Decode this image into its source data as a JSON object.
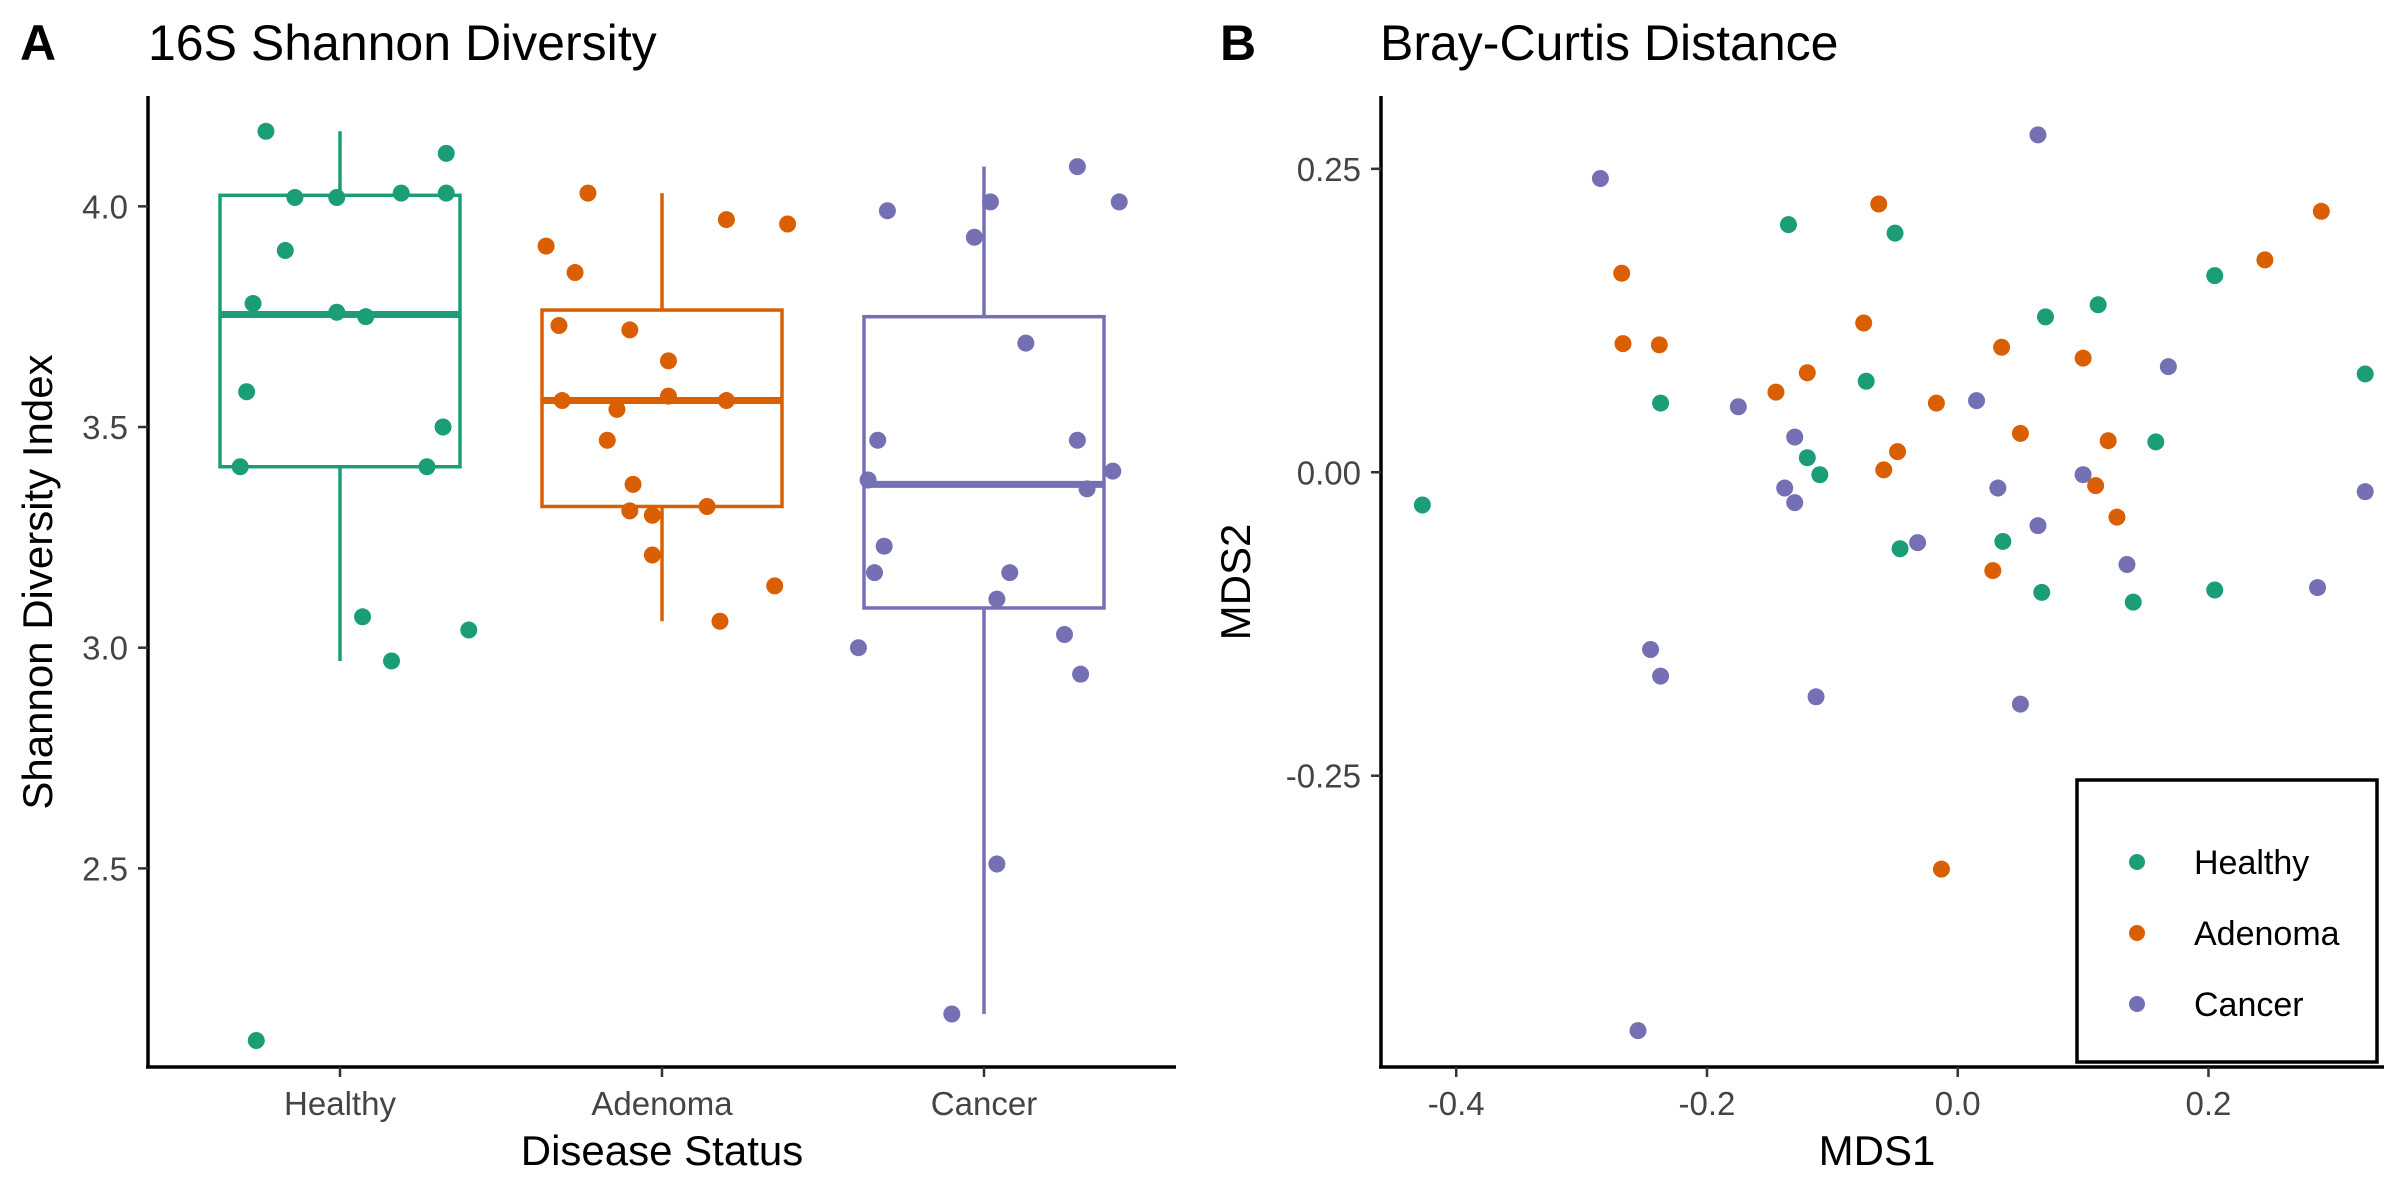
{
  "colors": {
    "Healthy": "#1b9e77",
    "Adenoma": "#d95f02",
    "Cancer": "#7570b3"
  },
  "chart_data": [
    {
      "panel": "A",
      "type": "box",
      "title": "16S Shannon Diversity",
      "xlabel": "Disease Status",
      "ylabel": "Shannon Diversity Index",
      "categories": [
        "Healthy",
        "Adenoma",
        "Cancer"
      ],
      "ylim": [
        2.05,
        4.25
      ],
      "yticks": [
        2.5,
        3.0,
        3.5,
        4.0
      ],
      "ytick_labels": [
        "2.5",
        "3.0",
        "3.5",
        "4.0"
      ],
      "boxes": [
        {
          "name": "Healthy",
          "whisker_low": 2.97,
          "q1": 3.41,
          "median": 3.755,
          "q3": 4.025,
          "whisker_high": 4.17
        },
        {
          "name": "Adenoma",
          "whisker_low": 3.06,
          "q1": 3.32,
          "median": 3.56,
          "q3": 3.765,
          "whisker_high": 4.03
        },
        {
          "name": "Cancer",
          "whisker_low": 2.17,
          "q1": 3.09,
          "median": 3.37,
          "q3": 3.75,
          "whisker_high": 4.09
        }
      ],
      "points": [
        {
          "group": "Healthy",
          "x": 0.69,
          "y": 3.41
        },
        {
          "group": "Healthy",
          "x": 0.71,
          "y": 3.58
        },
        {
          "group": "Healthy",
          "x": 0.73,
          "y": 3.78
        },
        {
          "group": "Healthy",
          "x": 0.74,
          "y": 2.11
        },
        {
          "group": "Healthy",
          "x": 0.77,
          "y": 4.17
        },
        {
          "group": "Healthy",
          "x": 0.83,
          "y": 3.9
        },
        {
          "group": "Healthy",
          "x": 0.86,
          "y": 4.02
        },
        {
          "group": "Healthy",
          "x": 0.99,
          "y": 4.02
        },
        {
          "group": "Healthy",
          "x": 0.99,
          "y": 3.76
        },
        {
          "group": "Healthy",
          "x": 1.07,
          "y": 3.07
        },
        {
          "group": "Healthy",
          "x": 1.08,
          "y": 3.75
        },
        {
          "group": "Healthy",
          "x": 1.16,
          "y": 2.97
        },
        {
          "group": "Healthy",
          "x": 1.19,
          "y": 4.03
        },
        {
          "group": "Healthy",
          "x": 1.27,
          "y": 3.41
        },
        {
          "group": "Healthy",
          "x": 1.33,
          "y": 4.12
        },
        {
          "group": "Healthy",
          "x": 1.33,
          "y": 4.03
        },
        {
          "group": "Healthy",
          "x": 1.32,
          "y": 3.5
        },
        {
          "group": "Healthy",
          "x": 1.4,
          "y": 3.04
        },
        {
          "group": "Adenoma",
          "x": 1.64,
          "y": 3.91
        },
        {
          "group": "Adenoma",
          "x": 1.68,
          "y": 3.73
        },
        {
          "group": "Adenoma",
          "x": 1.69,
          "y": 3.56
        },
        {
          "group": "Adenoma",
          "x": 1.73,
          "y": 3.85
        },
        {
          "group": "Adenoma",
          "x": 1.77,
          "y": 4.03
        },
        {
          "group": "Adenoma",
          "x": 1.83,
          "y": 3.47
        },
        {
          "group": "Adenoma",
          "x": 1.86,
          "y": 3.54
        },
        {
          "group": "Adenoma",
          "x": 1.9,
          "y": 3.72
        },
        {
          "group": "Adenoma",
          "x": 1.9,
          "y": 3.31
        },
        {
          "group": "Adenoma",
          "x": 1.91,
          "y": 3.37
        },
        {
          "group": "Adenoma",
          "x": 1.97,
          "y": 3.21
        },
        {
          "group": "Adenoma",
          "x": 1.97,
          "y": 3.3
        },
        {
          "group": "Adenoma",
          "x": 2.02,
          "y": 3.65
        },
        {
          "group": "Adenoma",
          "x": 2.02,
          "y": 3.57
        },
        {
          "group": "Adenoma",
          "x": 2.14,
          "y": 3.32
        },
        {
          "group": "Adenoma",
          "x": 2.18,
          "y": 3.06
        },
        {
          "group": "Adenoma",
          "x": 2.2,
          "y": 3.97
        },
        {
          "group": "Adenoma",
          "x": 2.2,
          "y": 3.56
        },
        {
          "group": "Adenoma",
          "x": 2.35,
          "y": 3.14
        },
        {
          "group": "Adenoma",
          "x": 2.39,
          "y": 3.96
        },
        {
          "group": "Cancer",
          "x": 2.61,
          "y": 3.0
        },
        {
          "group": "Cancer",
          "x": 2.64,
          "y": 3.38
        },
        {
          "group": "Cancer",
          "x": 2.66,
          "y": 3.17
        },
        {
          "group": "Cancer",
          "x": 2.67,
          "y": 3.47
        },
        {
          "group": "Cancer",
          "x": 2.69,
          "y": 3.23
        },
        {
          "group": "Cancer",
          "x": 2.7,
          "y": 3.99
        },
        {
          "group": "Cancer",
          "x": 2.9,
          "y": 2.17
        },
        {
          "group": "Cancer",
          "x": 2.97,
          "y": 3.93
        },
        {
          "group": "Cancer",
          "x": 3.02,
          "y": 4.01
        },
        {
          "group": "Cancer",
          "x": 3.04,
          "y": 3.11
        },
        {
          "group": "Cancer",
          "x": 3.04,
          "y": 2.51
        },
        {
          "group": "Cancer",
          "x": 3.08,
          "y": 3.17
        },
        {
          "group": "Cancer",
          "x": 3.13,
          "y": 3.69
        },
        {
          "group": "Cancer",
          "x": 3.25,
          "y": 3.03
        },
        {
          "group": "Cancer",
          "x": 3.29,
          "y": 4.09
        },
        {
          "group": "Cancer",
          "x": 3.29,
          "y": 3.47
        },
        {
          "group": "Cancer",
          "x": 3.3,
          "y": 2.94
        },
        {
          "group": "Cancer",
          "x": 3.32,
          "y": 3.36
        },
        {
          "group": "Cancer",
          "x": 3.4,
          "y": 3.4
        },
        {
          "group": "Cancer",
          "x": 3.42,
          "y": 4.01
        }
      ]
    },
    {
      "panel": "B",
      "type": "scatter",
      "title": "Bray-Curtis Distance",
      "xlabel": "MDS1",
      "ylabel": "MDS2",
      "xlim": [
        -0.46,
        0.34
      ],
      "ylim": [
        -0.49,
        0.31
      ],
      "xticks": [
        -0.4,
        -0.2,
        0.0,
        0.2
      ],
      "xtick_labels": [
        "-0.4",
        "-0.2",
        "0.0",
        "0.2"
      ],
      "yticks": [
        -0.25,
        0.0,
        0.25
      ],
      "ytick_labels": [
        "-0.25",
        "0.00",
        "0.25"
      ],
      "legend_position": "bottom-right",
      "series": [
        {
          "name": "Healthy",
          "points": [
            [
              -0.427,
              -0.027
            ],
            [
              -0.237,
              0.057
            ],
            [
              -0.135,
              0.204
            ],
            [
              -0.12,
              0.012
            ],
            [
              -0.11,
              -0.002
            ],
            [
              -0.073,
              0.075
            ],
            [
              -0.05,
              0.197
            ],
            [
              -0.046,
              -0.063
            ],
            [
              0.036,
              -0.057
            ],
            [
              0.067,
              -0.099
            ],
            [
              0.07,
              0.128
            ],
            [
              0.112,
              0.138
            ],
            [
              0.14,
              -0.107
            ],
            [
              0.158,
              0.025
            ],
            [
              0.205,
              0.162
            ],
            [
              0.205,
              -0.097
            ],
            [
              0.325,
              0.081
            ]
          ]
        },
        {
          "name": "Adenoma",
          "points": [
            [
              -0.268,
              0.164
            ],
            [
              -0.267,
              0.106
            ],
            [
              -0.238,
              0.105
            ],
            [
              -0.145,
              0.066
            ],
            [
              -0.12,
              0.082
            ],
            [
              -0.075,
              0.123
            ],
            [
              -0.063,
              0.221
            ],
            [
              -0.059,
              0.002
            ],
            [
              -0.048,
              0.017
            ],
            [
              -0.017,
              0.057
            ],
            [
              -0.013,
              -0.327
            ],
            [
              0.028,
              -0.081
            ],
            [
              0.035,
              0.103
            ],
            [
              0.05,
              0.032
            ],
            [
              0.1,
              0.094
            ],
            [
              0.11,
              -0.011
            ],
            [
              0.12,
              0.026
            ],
            [
              0.127,
              -0.037
            ],
            [
              0.245,
              0.175
            ],
            [
              0.29,
              0.215
            ]
          ]
        },
        {
          "name": "Cancer",
          "points": [
            [
              -0.285,
              0.242
            ],
            [
              -0.255,
              -0.46
            ],
            [
              -0.245,
              -0.146
            ],
            [
              -0.237,
              -0.168
            ],
            [
              -0.175,
              0.054
            ],
            [
              -0.138,
              -0.013
            ],
            [
              -0.13,
              0.029
            ],
            [
              -0.13,
              -0.025
            ],
            [
              -0.113,
              -0.185
            ],
            [
              -0.032,
              -0.058
            ],
            [
              0.015,
              0.059
            ],
            [
              0.032,
              -0.013
            ],
            [
              0.05,
              -0.191
            ],
            [
              0.064,
              0.278
            ],
            [
              0.064,
              -0.044
            ],
            [
              0.1,
              -0.002
            ],
            [
              0.135,
              -0.076
            ],
            [
              0.168,
              0.087
            ],
            [
              0.287,
              -0.095
            ],
            [
              0.325,
              -0.016
            ]
          ]
        }
      ]
    }
  ]
}
